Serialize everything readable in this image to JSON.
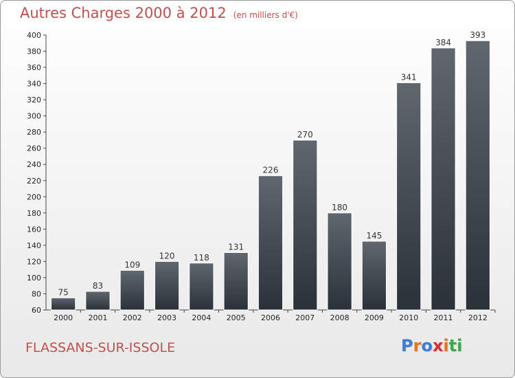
{
  "header": {
    "title": "Autres Charges 2000 à 2012",
    "unit": "(en milliers d'€)"
  },
  "footer": {
    "city": "FLASSANS-SUR-ISSOLE",
    "logo_letters": [
      "P",
      "r",
      "o",
      "x",
      "i",
      "t",
      "i"
    ],
    "logo_colors": [
      "#3b7dd8",
      "#e8731a",
      "#3b7dd8",
      "#d62f2f",
      "#e8731a",
      "#3bab4a",
      "#3bab4a"
    ]
  },
  "chart_data": {
    "type": "bar",
    "title": "Autres Charges 2000 à 2012",
    "subtitle": "(en milliers d'€)",
    "categories": [
      "2000",
      "2001",
      "2002",
      "2003",
      "2004",
      "2005",
      "2006",
      "2007",
      "2008",
      "2009",
      "2010",
      "2011",
      "2012"
    ],
    "values": [
      75,
      83,
      109,
      120,
      118,
      131,
      226,
      270,
      180,
      145,
      341,
      384,
      393
    ],
    "ylim": [
      60,
      400
    ],
    "ytick_step": 20,
    "grid": false,
    "bar_color_top": "#5f676f",
    "bar_color_bottom": "#2b3138",
    "xlabel": "",
    "ylabel": ""
  }
}
